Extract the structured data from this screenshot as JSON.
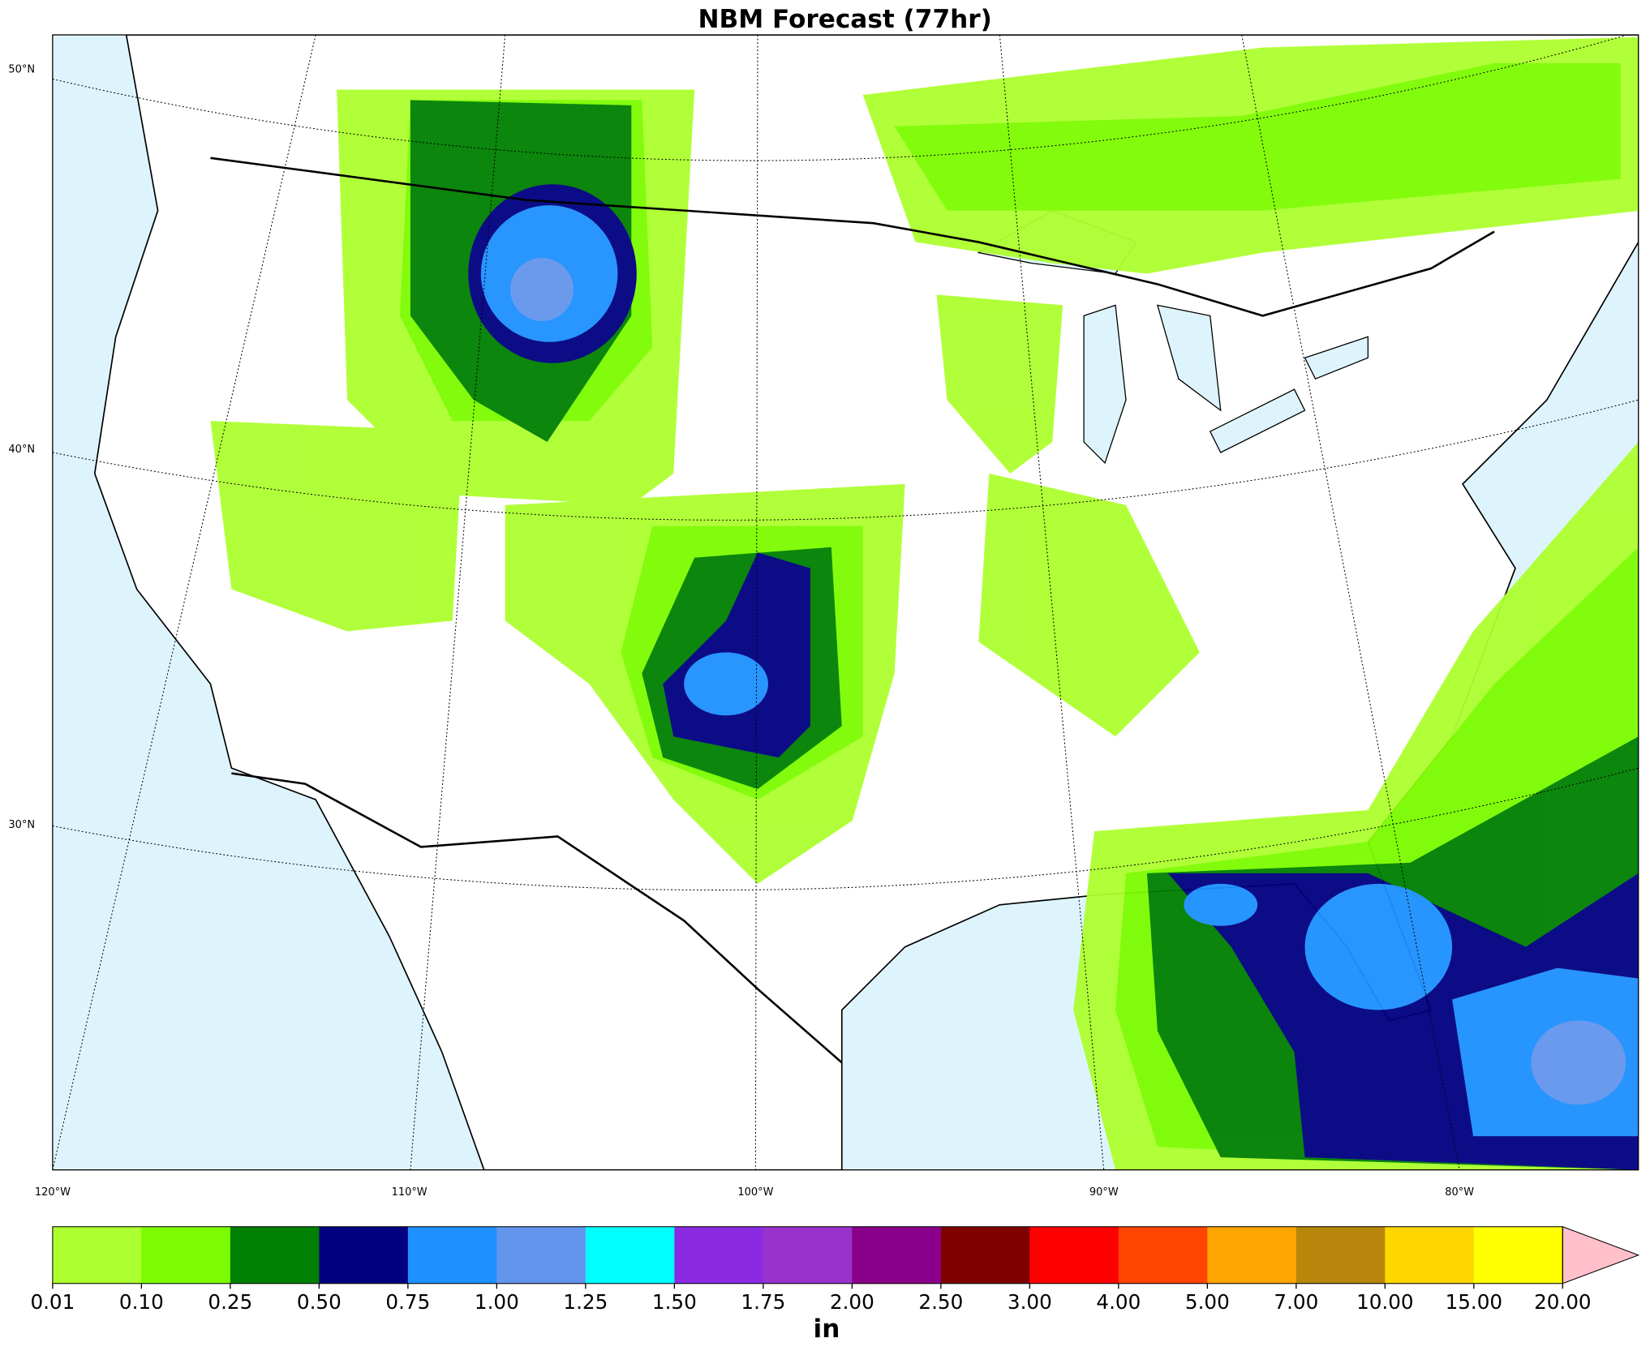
{
  "title": "NBM Forecast (77hr)",
  "map": {
    "lat_labels": [
      "50°N",
      "40°N",
      "30°N"
    ],
    "lon_labels": [
      "120°W",
      "110°W",
      "100°W",
      "90°W",
      "80°W"
    ]
  },
  "colorbar": {
    "colors": [
      "#adff2f",
      "#7cfc00",
      "#008000",
      "#000080",
      "#1e90ff",
      "#6495ed",
      "#00ffff",
      "#8a2be2",
      "#9932cc",
      "#8b008b",
      "#800000",
      "#ff0000",
      "#ff4500",
      "#ffa500",
      "#b8860b",
      "#ffd700",
      "#ffff00"
    ],
    "extend_color": "#ffc0cb",
    "ticks": [
      "0.01",
      "0.10",
      "0.25",
      "0.50",
      "0.75",
      "1.00",
      "1.25",
      "1.50",
      "1.75",
      "2.00",
      "2.50",
      "3.00",
      "4.00",
      "5.00",
      "7.00",
      "10.00",
      "15.00",
      "20.00"
    ],
    "unit": "in"
  }
}
